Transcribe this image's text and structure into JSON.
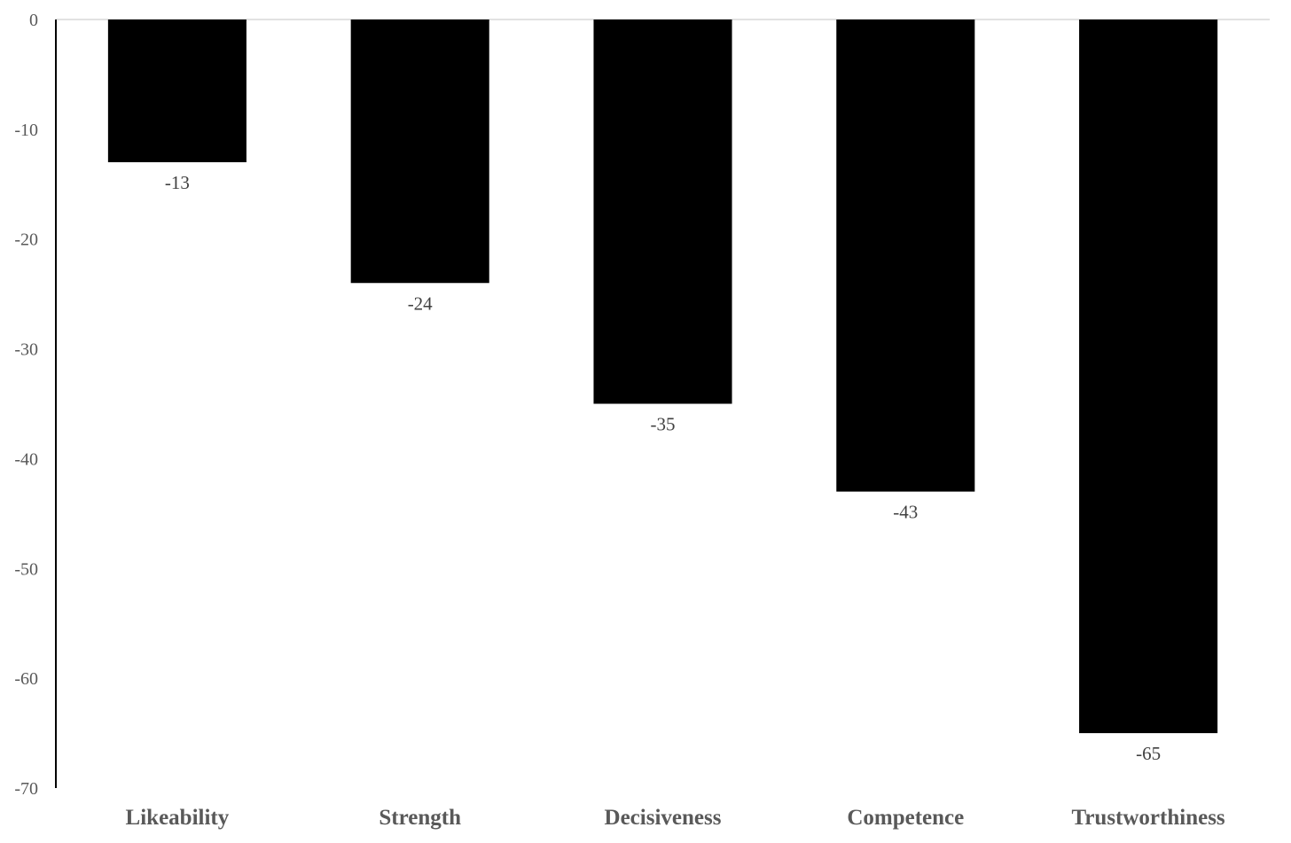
{
  "chart_data": {
    "type": "bar",
    "title": "",
    "xlabel": "",
    "ylabel": "",
    "categories": [
      "Likeability",
      "Strength",
      "Decisiveness",
      "Competence",
      "Trustworthiness"
    ],
    "values": [
      -13,
      -24,
      -35,
      -43,
      -65
    ],
    "data_labels": [
      "-13",
      "-24",
      "-35",
      "-43",
      "-65"
    ],
    "ylim": [
      -70,
      0
    ],
    "yticks": [
      0,
      -10,
      -20,
      -30,
      -40,
      -50,
      -60,
      -70
    ],
    "ytick_labels": [
      "0",
      "-10",
      "-20",
      "-30",
      "-40",
      "-50",
      "-60",
      "-70"
    ],
    "grid": false,
    "legend": "none",
    "colors": {
      "bar": "#000000",
      "axis_line": "#000000",
      "zero_line": "#d9d9d9",
      "tick_text": "#595959",
      "data_label_text": "#404040",
      "category_text": "#595959"
    }
  }
}
